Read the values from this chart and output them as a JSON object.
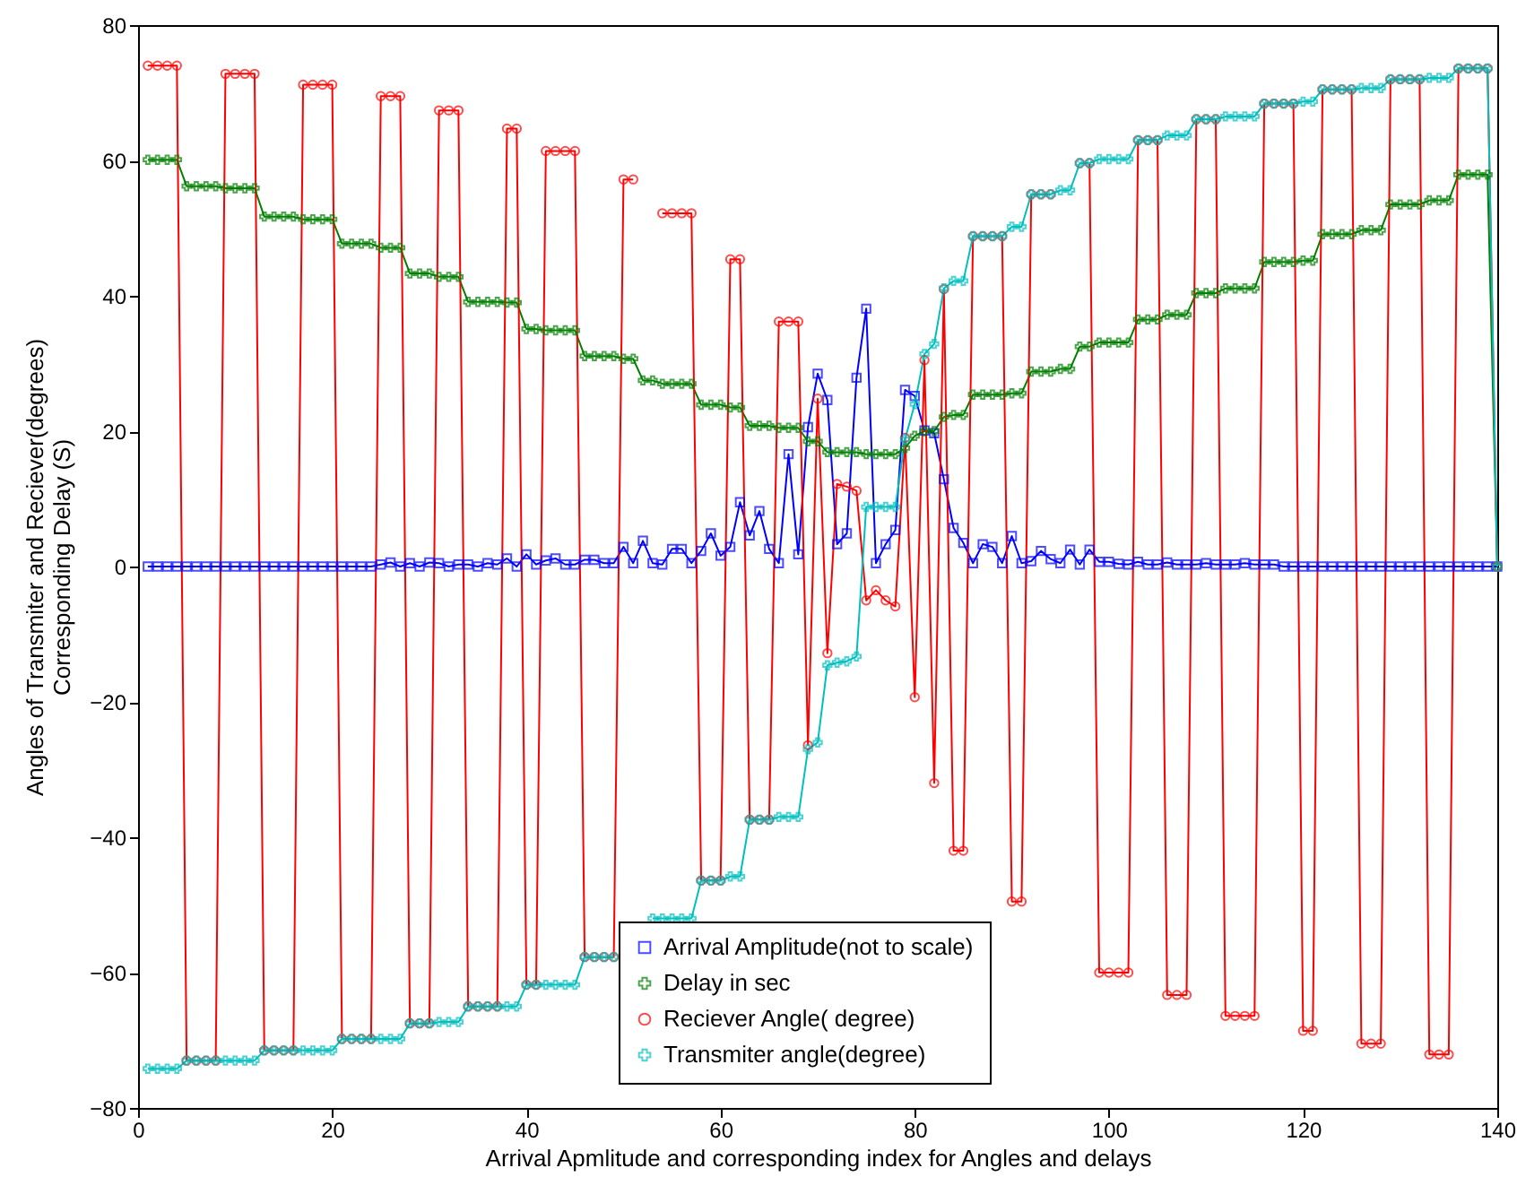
{
  "chart_data": {
    "type": "line",
    "xlabel": "Arrival Apmlitude and corresponding index for Angles and delays",
    "ylabel": "Angles of Transmiter and Reciever(degrees)\nCorresponding Delay (S)",
    "xlim": [
      0,
      140
    ],
    "xticks": [
      0,
      20,
      40,
      60,
      80,
      100,
      120,
      140
    ],
    "ylim": [
      -80,
      80
    ],
    "yticks": [
      -80,
      -60,
      -40,
      -20,
      0,
      20,
      40,
      60,
      80
    ],
    "legend": "bottom",
    "line_style": "solid",
    "x": [
      1,
      2,
      3,
      4,
      5,
      6,
      7,
      8,
      9,
      10,
      11,
      12,
      13,
      14,
      15,
      16,
      17,
      18,
      19,
      20,
      21,
      22,
      23,
      24,
      25,
      26,
      27,
      28,
      29,
      30,
      31,
      32,
      33,
      34,
      35,
      36,
      37,
      38,
      39,
      40,
      41,
      42,
      43,
      44,
      45,
      46,
      47,
      48,
      49,
      50,
      51,
      52,
      53,
      54,
      55,
      56,
      57,
      58,
      59,
      60,
      61,
      62,
      63,
      64,
      65,
      66,
      67,
      68,
      69,
      70,
      71,
      72,
      73,
      74,
      75,
      76,
      77,
      78,
      79,
      80,
      81,
      82,
      83,
      84,
      85,
      86,
      87,
      88,
      89,
      90,
      91,
      92,
      93,
      94,
      95,
      96,
      97,
      98,
      99,
      100,
      101,
      102,
      103,
      104,
      105,
      106,
      107,
      108,
      109,
      110,
      111,
      112,
      113,
      114,
      115,
      116,
      117,
      118,
      119,
      120,
      121,
      122,
      123,
      124,
      125,
      126,
      127,
      128,
      129,
      130,
      131,
      132,
      133,
      134,
      135,
      136,
      137,
      138,
      139,
      140
    ],
    "series": [
      {
        "name": "Arrival Amplitude(not to scale)",
        "color": "#0000ff",
        "marker": "square",
        "values": [
          0,
          0,
          0,
          0,
          0,
          0,
          0,
          0,
          0,
          0,
          0,
          0,
          0,
          0,
          0,
          0,
          0,
          0,
          0,
          0,
          0,
          0,
          0,
          0,
          0.3,
          0.6,
          0,
          0.5,
          0,
          0.6,
          0.5,
          0,
          0.3,
          0.3,
          0,
          0.5,
          0.3,
          1.2,
          0,
          1.8,
          0.3,
          0.9,
          1.2,
          0.3,
          0.3,
          1,
          1,
          0.5,
          0.5,
          2.9,
          0.5,
          3.8,
          0.5,
          0.3,
          2.6,
          2.6,
          0.5,
          2.3,
          4.9,
          1.6,
          2.9,
          9.5,
          4.6,
          8.2,
          2.6,
          0.5,
          16.6,
          1.8,
          20.6,
          28.5,
          24.6,
          3.3,
          4.9,
          27.9,
          38.1,
          0.5,
          3.3,
          5.4,
          26.1,
          25.2,
          20.1,
          19.7,
          12.9,
          5.7,
          3.5,
          0.5,
          3.3,
          2.9,
          0.5,
          4.5,
          0.5,
          0.8,
          2.3,
          1.1,
          0.5,
          2.5,
          0.3,
          2.5,
          0.7,
          0.7,
          0.4,
          0.3,
          0.7,
          0.3,
          0.3,
          0.6,
          0.3,
          0.3,
          0.3,
          0.5,
          0.3,
          0.3,
          0.3,
          0.5,
          0.3,
          0.3,
          0.3,
          0,
          0,
          0,
          0,
          0,
          0,
          0,
          0,
          0,
          0,
          0,
          0,
          0,
          0,
          0,
          0,
          0,
          0,
          0,
          0,
          0,
          0,
          0
        ]
      },
      {
        "name": "Delay in sec",
        "color": "#008000",
        "marker": "cross",
        "values": [
          60.1,
          60.1,
          60.1,
          60.1,
          56.2,
          56.2,
          56.2,
          56.2,
          55.9,
          55.9,
          55.9,
          55.9,
          51.7,
          51.7,
          51.7,
          51.7,
          51.3,
          51.3,
          51.3,
          51.3,
          47.7,
          47.7,
          47.7,
          47.7,
          47.1,
          47.1,
          47.1,
          43.3,
          43.3,
          43.3,
          42.8,
          42.8,
          42.8,
          39.1,
          39.1,
          39.1,
          39.1,
          39,
          39,
          35.1,
          35.1,
          34.9,
          34.9,
          34.9,
          34.9,
          31.1,
          31.1,
          31.1,
          31.1,
          30.7,
          30.7,
          27.5,
          27.5,
          27,
          27,
          27,
          27,
          23.9,
          23.9,
          23.9,
          23.5,
          23.5,
          20.8,
          20.8,
          20.8,
          20.5,
          20.5,
          20.5,
          18.5,
          18.5,
          16.9,
          16.9,
          16.9,
          16.9,
          16.6,
          16.6,
          16.6,
          16.6,
          17.5,
          19.3,
          20,
          20,
          22.1,
          22.4,
          22.4,
          25.4,
          25.4,
          25.4,
          25.4,
          25.6,
          25.6,
          28.8,
          28.8,
          28.8,
          29.2,
          29.2,
          32.5,
          32.5,
          33.1,
          33.1,
          33.1,
          33.1,
          36.5,
          36.5,
          36.5,
          37.2,
          37.2,
          37.2,
          40.4,
          40.4,
          40.4,
          41.1,
          41.1,
          41.1,
          41.1,
          45,
          45,
          45,
          45,
          45.2,
          45.2,
          49.1,
          49.1,
          49.1,
          49.1,
          49.7,
          49.7,
          49.7,
          53.5,
          53.5,
          53.5,
          53.5,
          54.1,
          54.1,
          54.1,
          57.9,
          57.9,
          57.9,
          57.9,
          0
        ]
      },
      {
        "name": "Reciever Angle( degree)",
        "color": "#ff0000",
        "marker": "circle",
        "values": [
          74,
          74,
          74,
          74,
          -73,
          -73,
          -73,
          -73,
          72.8,
          72.8,
          72.8,
          72.8,
          -71.5,
          -71.5,
          -71.5,
          -71.5,
          71.2,
          71.2,
          71.2,
          71.2,
          -69.8,
          -69.8,
          -69.8,
          -69.8,
          69.5,
          69.5,
          69.5,
          -67.5,
          -67.5,
          -67.5,
          67.4,
          67.4,
          67.4,
          -65,
          -65,
          -65,
          -65,
          64.7,
          64.7,
          -61.8,
          -61.8,
          61.4,
          61.4,
          61.4,
          61.4,
          -57.7,
          -57.7,
          -57.7,
          -57.7,
          57.2,
          57.2,
          null,
          null,
          52.2,
          52.2,
          52.2,
          52.2,
          -46.4,
          -46.4,
          -46.4,
          45.4,
          45.4,
          -37.4,
          -37.4,
          -37.4,
          36.2,
          36.2,
          36.2,
          -26.4,
          24.8,
          -12.8,
          12.2,
          11.8,
          11.2,
          -5,
          -3.5,
          -5,
          -5.9,
          19,
          -19.3,
          30.5,
          -32,
          41,
          -42,
          -42,
          48.8,
          48.8,
          48.8,
          48.8,
          -49.5,
          -49.5,
          55,
          55,
          55,
          null,
          null,
          59.6,
          59.6,
          -60,
          -60,
          -60,
          -60,
          63,
          63,
          63,
          -63.3,
          -63.3,
          -63.3,
          66.1,
          66.1,
          66.1,
          -66.4,
          -66.4,
          -66.4,
          -66.4,
          68.4,
          68.4,
          68.4,
          68.4,
          -68.6,
          -68.6,
          70.5,
          70.5,
          70.5,
          70.5,
          -70.5,
          -70.5,
          -70.5,
          72,
          72,
          72,
          72,
          -72.1,
          -72.1,
          -72.1,
          73.6,
          73.6,
          73.6,
          73.6,
          0
        ]
      },
      {
        "name": "Transmiter angle(degree)",
        "color": "#00bfbf",
        "marker": "cross",
        "values": [
          -74.2,
          -74.2,
          -74.2,
          -74.2,
          -73,
          -73,
          -73,
          -73,
          -73,
          -73,
          -73,
          -73,
          -71.5,
          -71.5,
          -71.5,
          -71.5,
          -71.5,
          -71.5,
          -71.5,
          -71.5,
          -69.8,
          -69.8,
          -69.8,
          -69.8,
          -69.8,
          -69.8,
          -69.8,
          -67.5,
          -67.5,
          -67.5,
          -67.3,
          -67.3,
          -67.3,
          -65,
          -65,
          -65,
          -65,
          -65,
          -65,
          -61.8,
          -61.8,
          -61.8,
          -61.8,
          -61.8,
          -61.8,
          -57.7,
          -57.7,
          -57.7,
          -57.7,
          null,
          null,
          null,
          -52,
          -52,
          -52,
          -52,
          -52,
          -46.4,
          -46.4,
          -46.4,
          -45.8,
          -45.8,
          -37.4,
          -37.4,
          -37.4,
          -37,
          -37,
          -37,
          -27,
          -26,
          -14.6,
          -14.2,
          -14,
          -13.3,
          8.8,
          8.8,
          8.8,
          8.8,
          18.8,
          24,
          31.4,
          32.9,
          41.1,
          42.2,
          42.2,
          48.8,
          48.8,
          48.8,
          48.8,
          50.2,
          50.2,
          55,
          55,
          55,
          55.6,
          55.6,
          59.6,
          59.6,
          60.2,
          60.2,
          60.2,
          60.2,
          63,
          63,
          63,
          63.7,
          63.7,
          63.7,
          66.1,
          66.1,
          66.1,
          66.5,
          66.5,
          66.5,
          66.5,
          68.4,
          68.4,
          68.4,
          68.4,
          68.7,
          68.7,
          70.5,
          70.5,
          70.5,
          70.5,
          70.7,
          70.7,
          70.7,
          72,
          72,
          72,
          72,
          72.2,
          72.2,
          72.2,
          73.6,
          73.6,
          73.6,
          73.6,
          0
        ]
      }
    ]
  }
}
